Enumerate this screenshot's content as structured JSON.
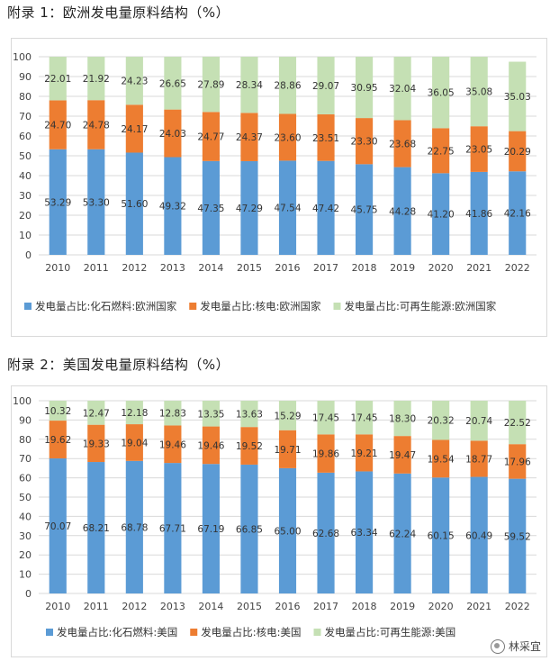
{
  "title1": "附录 1：欧洲发电量原料结构（%）",
  "title2": "附录 2：美国发电量原料结构（%）",
  "watermark": "林采宜",
  "colors": {
    "fossil": "#5b9bd5",
    "nuclear": "#ed7d31",
    "renewable": "#c5e0b4",
    "grid": "#d9d9d9"
  },
  "chart_data": [
    {
      "type": "bar",
      "stacked": true,
      "title": "附录 1：欧洲发电量原料结构（%）",
      "categories": [
        "2010",
        "2011",
        "2012",
        "2013",
        "2014",
        "2015",
        "2016",
        "2017",
        "2018",
        "2019",
        "2020",
        "2021",
        "2022"
      ],
      "ylim": [
        0,
        100
      ],
      "yticks": [
        0,
        10,
        20,
        30,
        40,
        50,
        60,
        70,
        80,
        90,
        100
      ],
      "grid": true,
      "legend": "bottom",
      "series": [
        {
          "name": "发电量占比:化石燃料:欧洲国家",
          "values": [
            53.29,
            53.3,
            51.6,
            49.32,
            47.35,
            47.29,
            47.54,
            47.42,
            45.75,
            44.28,
            41.2,
            41.86,
            42.16
          ]
        },
        {
          "name": "发电量占比:核电:欧洲国家",
          "values": [
            24.7,
            24.78,
            24.17,
            24.03,
            24.77,
            24.37,
            23.6,
            23.51,
            23.3,
            23.68,
            22.75,
            23.05,
            20.29
          ]
        },
        {
          "name": "发电量占比:可再生能源:欧洲国家",
          "values": [
            22.01,
            21.92,
            24.23,
            26.65,
            27.89,
            28.34,
            28.86,
            29.07,
            30.95,
            32.04,
            36.05,
            35.08,
            35.03
          ]
        }
      ]
    },
    {
      "type": "bar",
      "stacked": true,
      "title": "附录 2：美国发电量原料结构（%）",
      "categories": [
        "2010",
        "2011",
        "2012",
        "2013",
        "2014",
        "2015",
        "2016",
        "2017",
        "2018",
        "2019",
        "2020",
        "2021",
        "2022"
      ],
      "ylim": [
        0,
        100
      ],
      "yticks": [
        0,
        10,
        20,
        30,
        40,
        50,
        60,
        70,
        80,
        90,
        100
      ],
      "grid": true,
      "legend": "bottom",
      "series": [
        {
          "name": "发电量占比:化石燃料:美国",
          "values": [
            70.07,
            68.21,
            68.78,
            67.71,
            67.19,
            66.85,
            65.0,
            62.68,
            63.34,
            62.24,
            60.15,
            60.49,
            59.52
          ]
        },
        {
          "name": "发电量占比:核电:美国",
          "values": [
            19.62,
            19.33,
            19.04,
            19.46,
            19.46,
            19.52,
            19.71,
            19.86,
            19.21,
            19.47,
            19.54,
            18.77,
            17.96
          ]
        },
        {
          "name": "发电量占比:可再生能源:美国",
          "values": [
            10.32,
            12.47,
            12.18,
            12.83,
            13.35,
            13.63,
            15.29,
            17.45,
            17.45,
            18.3,
            20.32,
            20.74,
            22.52
          ]
        }
      ]
    }
  ]
}
